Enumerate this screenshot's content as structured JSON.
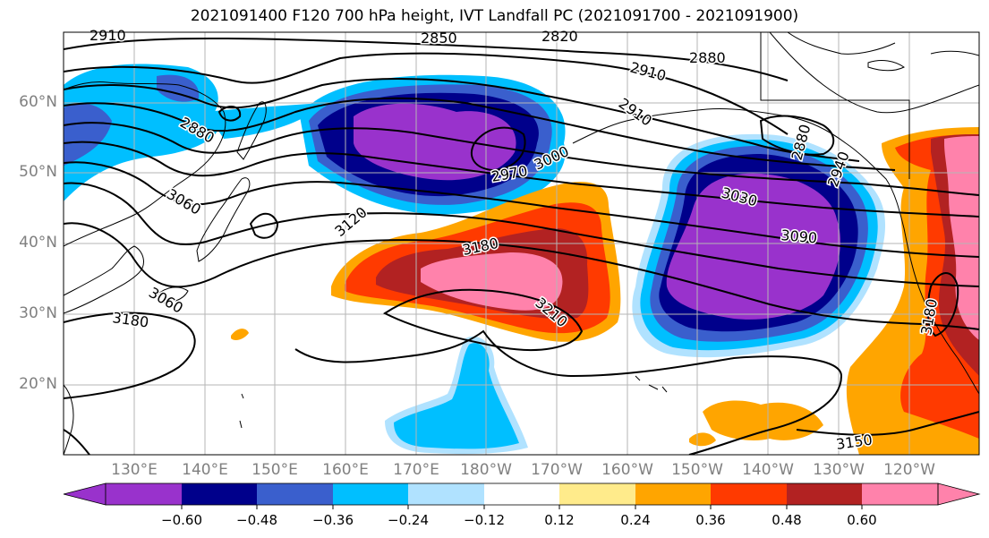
{
  "title": "2021091400 F120 700 hPa height, IVT Landfall PC (2021091700 - 2021091900)",
  "lat_labels": [
    "60°N",
    "50°N",
    "40°N",
    "30°N",
    "20°N"
  ],
  "lon_labels": [
    "130°E",
    "140°E",
    "150°E",
    "160°E",
    "170°E",
    "180°W",
    "170°W",
    "160°W",
    "150°W",
    "140°W",
    "130°W",
    "120°W"
  ],
  "contour_labels": [
    "2910",
    "2850",
    "2820",
    "2910",
    "2880",
    "2910",
    "2880",
    "2970",
    "3000",
    "3060",
    "3120",
    "3180",
    "3030",
    "3090",
    "3180",
    "3210",
    "3180",
    "3150",
    "2880",
    "2940",
    "3060"
  ],
  "colorbar": {
    "colors": [
      "#9932cc",
      "#00008b",
      "#3a5fcd",
      "#00bfff",
      "#b0e2ff",
      "#ffffff",
      "#ffeb8b",
      "#ffa500",
      "#ff3a00",
      "#b22222",
      "#ff82ab"
    ],
    "tick_labels": [
      "−0.60",
      "−0.48",
      "−0.36",
      "−0.24",
      "−0.12",
      "0.12",
      "0.24",
      "0.36",
      "0.48",
      "0.60"
    ]
  },
  "field_colors": {
    "neg_strong": "#9932cc",
    "neg_2": "#00008b",
    "neg_3": "#3a5fcd",
    "neg_4": "#00bfff",
    "neg_5": "#b0e2ff",
    "pos_1": "#ffeb8b",
    "pos_2": "#ffa500",
    "pos_3": "#ff3a00",
    "pos_4": "#b22222",
    "pos_5": "#ff82ab"
  }
}
